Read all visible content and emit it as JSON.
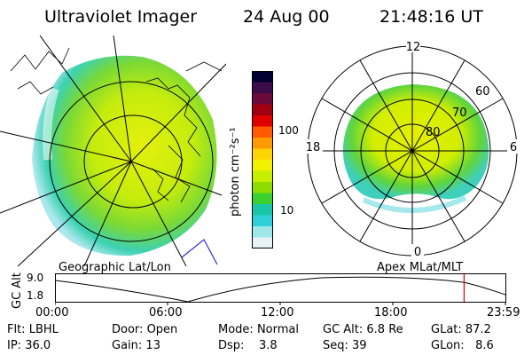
{
  "header": {
    "title": "Ultraviolet Imager",
    "date": "24 Aug 00",
    "time": "21:48:16 UT"
  },
  "colorbar": {
    "unit_label": "photon cm⁻²s⁻¹",
    "ticks": [
      "100",
      "10"
    ],
    "colors": [
      "#000033",
      "#3b0b4a",
      "#6a0a3a",
      "#a00010",
      "#e00000",
      "#ff5a00",
      "#ff9a00",
      "#ffd400",
      "#f2f200",
      "#c8ee00",
      "#8fdc00",
      "#3ccf30",
      "#19c7a8",
      "#2fd0d8",
      "#9ee8ec",
      "#e8f2f6"
    ]
  },
  "geo_panel": {
    "label": "Geographic Lat/Lon"
  },
  "polar_panel": {
    "label": "Apex MLat/MLT",
    "mlt_labels": {
      "top": "12",
      "left": "18",
      "right": "6",
      "bottom": "0"
    },
    "lat_labels": [
      "60",
      "70",
      "80"
    ]
  },
  "altitude_plot": {
    "ylabel": "GC Alt",
    "yticks": [
      "9.0",
      "1.8"
    ],
    "xticks": [
      "00:00",
      "06:00",
      "12:00",
      "18:00",
      "23:59"
    ],
    "current_time_marker_hour": 21.8
  },
  "footer": {
    "row1": [
      {
        "label": "Flt:",
        "value": "LBHL"
      },
      {
        "label": "Door:",
        "value": "Open"
      },
      {
        "label": "Mode:",
        "value": "Normal"
      },
      {
        "label": "GC Alt:",
        "value": "6.8 Re"
      },
      {
        "label": "GLat:",
        "value": "87.2"
      }
    ],
    "row2": [
      {
        "label": "IP:",
        "value": "36.0"
      },
      {
        "label": "Gain:",
        "value": "13"
      },
      {
        "label": "Dsp:",
        "value": "3.8"
      },
      {
        "label": "Seq:",
        "value": "39"
      },
      {
        "label": "GLon:",
        "value": "8.6"
      }
    ]
  }
}
